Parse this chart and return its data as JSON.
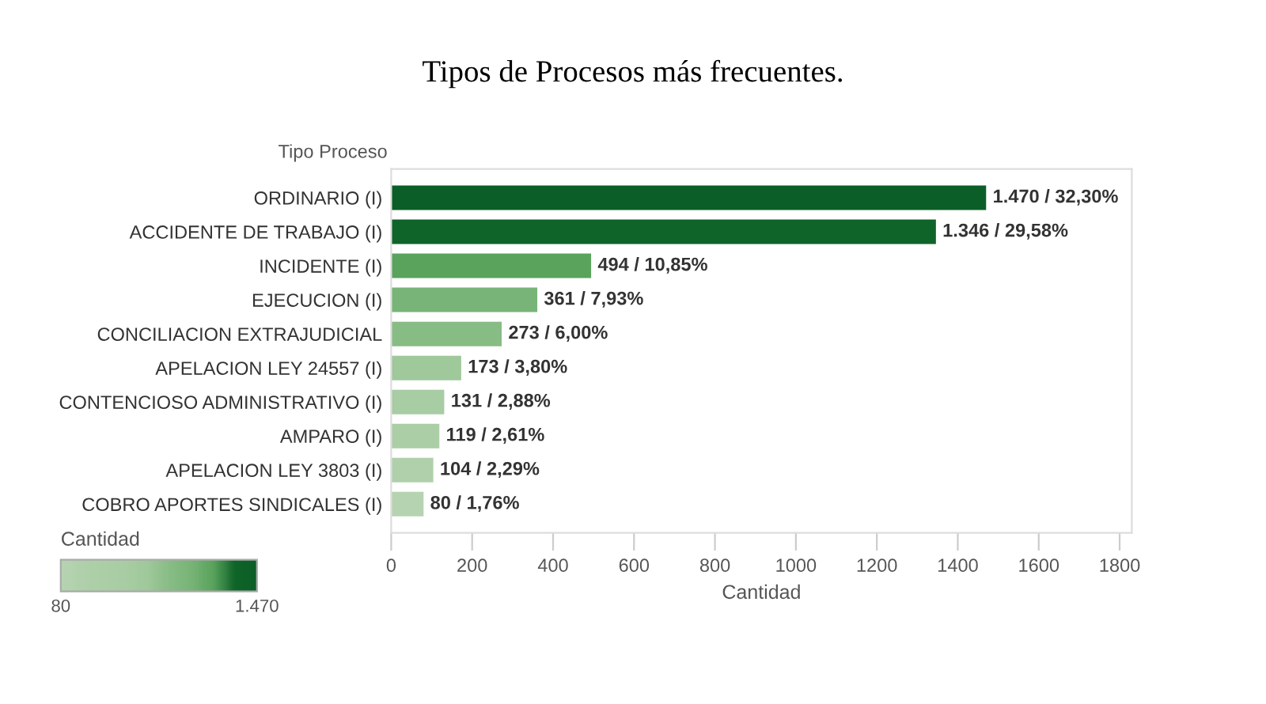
{
  "chart_data": {
    "type": "bar",
    "orientation": "horizontal",
    "title": "Tipos de Procesos más frecuentes.",
    "xlabel": "Cantidad",
    "ylabel": "Tipo Proceso",
    "clabel": "Cantidad",
    "categories": [
      "ORDINARIO (I)",
      "ACCIDENTE DE TRABAJO (I)",
      "INCIDENTE (I)",
      "EJECUCION (I)",
      "CONCILIACION EXTRAJUDICIAL",
      "APELACION LEY 24557 (I)",
      "CONTENCIOSO ADMINISTRATIVO (I)",
      "AMPARO (I)",
      "APELACION LEY 3803 (I)",
      "COBRO APORTES SINDICALES (I)"
    ],
    "values": [
      1470,
      1346,
      494,
      361,
      273,
      173,
      131,
      119,
      104,
      80
    ],
    "value_labels": [
      "1.470 / 32,30%",
      "1.346 / 29,58%",
      "494 / 10,85%",
      "361 / 7,93%",
      "273 / 6,00%",
      "173 / 3,80%",
      "131 / 2,88%",
      "119 / 2,61%",
      "104 / 2,29%",
      "80 / 1,76%"
    ],
    "colors": [
      "#0b5e27",
      "#0f6429",
      "#5aa35d",
      "#78b477",
      "#88bc85",
      "#9fc89b",
      "#a8cca3",
      "#abcea6",
      "#afd0aa",
      "#b6d3b1"
    ],
    "clim": [
      80,
      1470
    ],
    "cticks": [
      {
        "value": 80,
        "label": "80"
      },
      {
        "value": 1470,
        "label": "1.470"
      }
    ],
    "xlim": [
      0,
      1830
    ],
    "xticks": [
      0,
      200,
      400,
      600,
      800,
      1000,
      1200,
      1400,
      1600,
      1800
    ],
    "grid": false,
    "legend": false
  }
}
